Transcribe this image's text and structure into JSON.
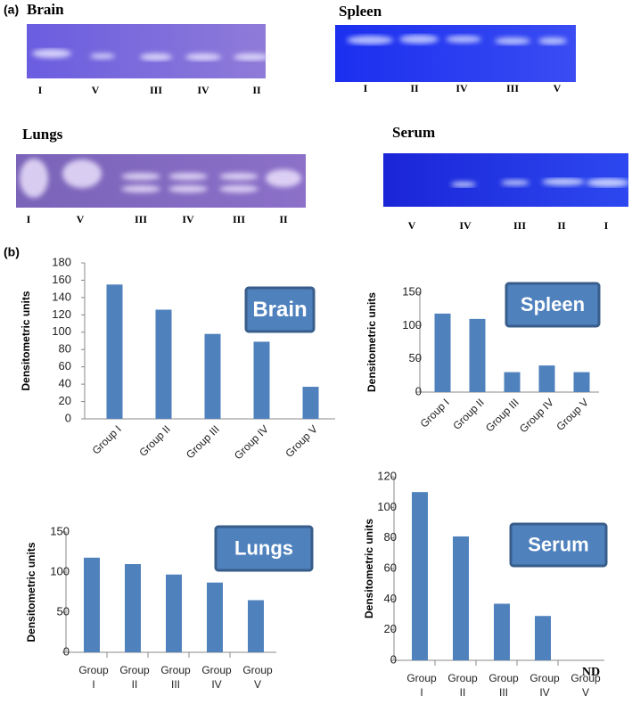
{
  "panel_labels": [
    "(a)",
    "(b)"
  ],
  "gels": [
    {
      "title": "Brain",
      "lanes": [
        "I",
        "V",
        "III",
        "IV",
        "II"
      ]
    },
    {
      "title": "Spleen",
      "lanes": [
        "I",
        "II",
        "IV",
        "III",
        "V"
      ]
    },
    {
      "title": "Lungs",
      "lanes": [
        "I",
        "V",
        "III",
        "IV",
        "III",
        "II"
      ]
    },
    {
      "title": "Serum",
      "lanes": [
        "V",
        "IV",
        "III",
        "II",
        "I"
      ]
    }
  ],
  "chart_data": [
    {
      "type": "bar",
      "label": "Brain",
      "y_label": "Densitometric units",
      "categories": [
        "Group I",
        "Group II",
        "Group III",
        "Group IV",
        "Group V"
      ],
      "values": [
        155,
        126,
        98,
        89,
        37
      ],
      "color": "#4f81bd",
      "ylim": [
        0,
        180
      ],
      "yticks": [
        0,
        20,
        40,
        60,
        80,
        100,
        120,
        140,
        160,
        180
      ],
      "x_label_rotation": -45
    },
    {
      "type": "bar",
      "label": "Spleen",
      "y_label": "Densitometric units",
      "categories": [
        "Group I",
        "Group II",
        "Group III",
        "Group IV",
        "Group V"
      ],
      "values": [
        118,
        110,
        30,
        40,
        30
      ],
      "color": "#4f81bd",
      "ylim": [
        0,
        150
      ],
      "yticks": [
        0,
        50,
        100,
        150
      ],
      "x_label_rotation": -45
    },
    {
      "type": "bar",
      "label": "Lungs",
      "y_label": "Densitometric units",
      "categories": [
        "Group I",
        "Group II",
        "Group III",
        "Group IV",
        "Group V"
      ],
      "values": [
        118,
        110,
        97,
        87,
        65
      ],
      "color": "#4f81bd",
      "ylim": [
        0,
        150
      ],
      "yticks": [
        0,
        50,
        100,
        150
      ],
      "x_label_rotation": 0
    },
    {
      "type": "bar",
      "label": "Serum",
      "y_label": "Densitometric units",
      "categories": [
        "Group I",
        "Group II",
        "Group III",
        "Group IV",
        "Group V"
      ],
      "values": [
        110,
        81,
        37,
        29,
        null
      ],
      "annotation": "ND",
      "color": "#4f81bd",
      "ylim": [
        0,
        120
      ],
      "yticks": [
        0,
        20,
        40,
        60,
        80,
        100,
        120
      ],
      "x_label_rotation": 0
    }
  ]
}
